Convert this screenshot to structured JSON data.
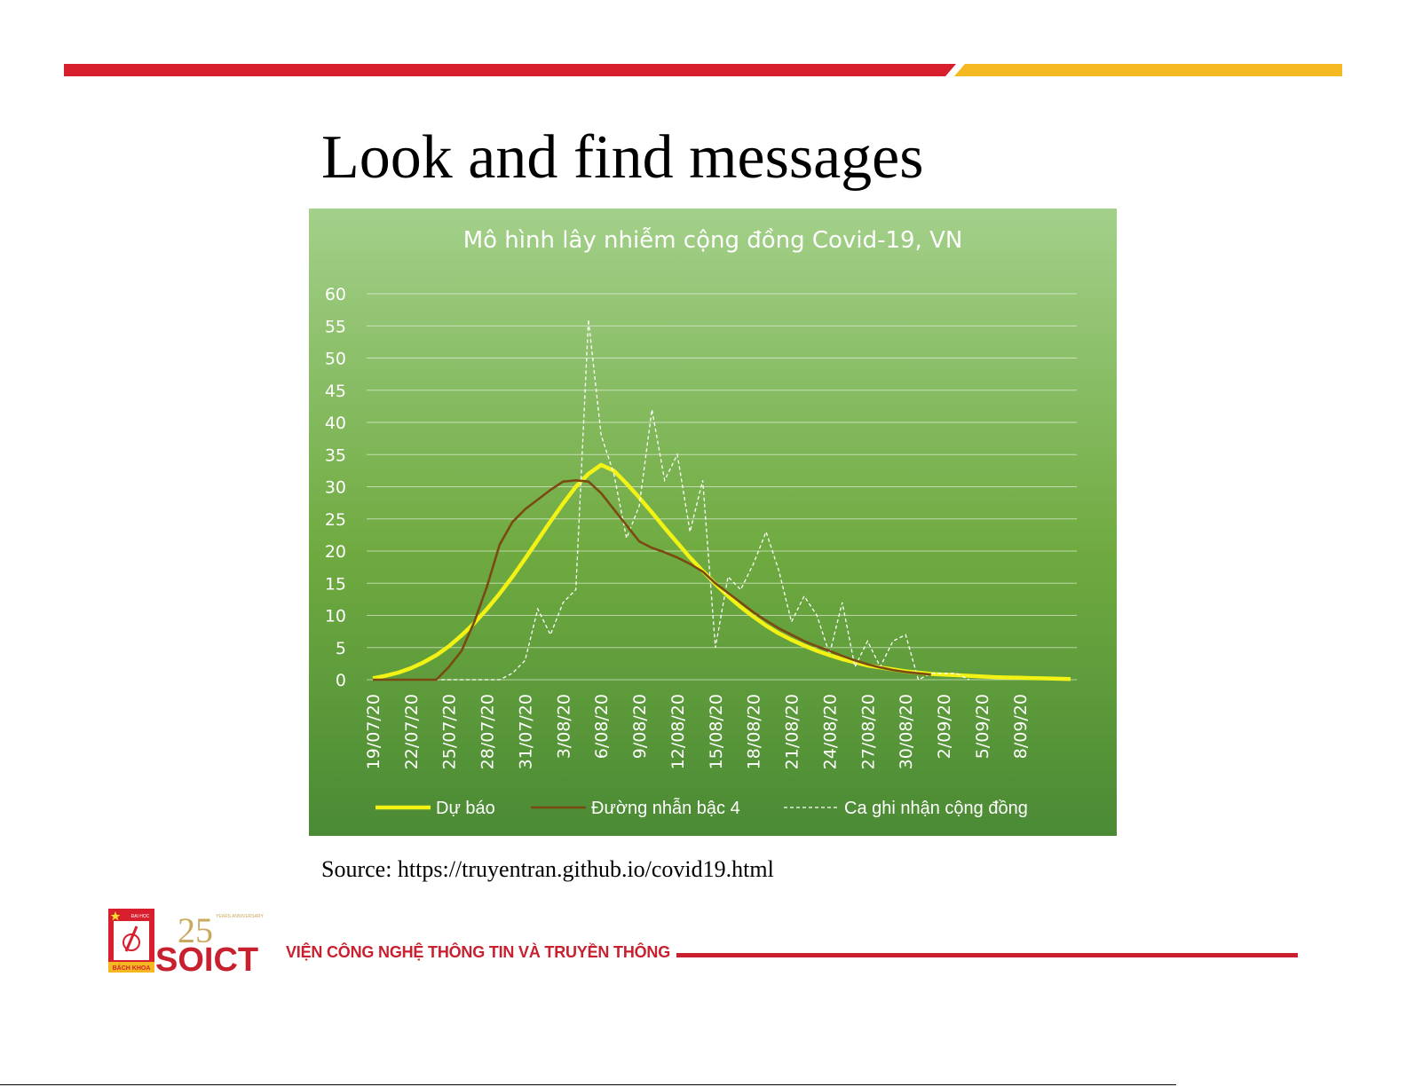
{
  "slide": {
    "title": "Look and find messages",
    "source": "Source: https://truyentran.github.io/covid19.html",
    "colors": {
      "red": "#d71f2e",
      "yellow": "#f4b920"
    }
  },
  "footer": {
    "org_name": "VIỆN CÔNG NGHỆ THÔNG TIN VÀ TRUYỀN THÔNG",
    "logo_text": "SOICT",
    "anniversary": "25",
    "school_seal_top": "ĐẠI HỌC",
    "school_seal_bottom": "BÁCH KHOA",
    "anniversary_ring": "YEARS ANNIVERSARY"
  },
  "chart_data": {
    "type": "line",
    "title": "Mô hình lây nhiễm cộng đồng Covid-19, VN",
    "xlabel": "",
    "ylabel": "",
    "ylim": [
      0,
      60
    ],
    "yticks": [
      0,
      5,
      10,
      15,
      20,
      25,
      30,
      35,
      40,
      45,
      50,
      55,
      60
    ],
    "x_tick_labels": [
      "19/07/20",
      "22/07/20",
      "25/07/20",
      "28/07/20",
      "31/07/20",
      "3/08/20",
      "6/08/20",
      "9/08/20",
      "12/08/20",
      "15/08/20",
      "18/08/20",
      "21/08/20",
      "24/08/20",
      "27/08/20",
      "30/08/20",
      "2/09/20",
      "5/09/20",
      "8/09/20"
    ],
    "x_start": "19/07/20",
    "n_days": 56,
    "grid": true,
    "legend_position": "bottom",
    "background": {
      "top": "#a3d08a",
      "middle": "#6faa40",
      "bottom": "#4b8a35"
    },
    "series": [
      {
        "name": "Dự báo",
        "style": "solid-thick",
        "color": "#f2f215",
        "values": [
          0.2,
          0.6,
          1.1,
          1.8,
          2.7,
          3.8,
          5.2,
          6.9,
          8.8,
          11.0,
          13.4,
          16.0,
          18.8,
          21.7,
          24.6,
          27.4,
          30.0,
          32.0,
          33.4,
          32.5,
          30.5,
          28.3,
          26.0,
          23.6,
          21.3,
          19.0,
          16.9,
          14.9,
          13.0,
          11.3,
          9.8,
          8.4,
          7.2,
          6.2,
          5.3,
          4.5,
          3.8,
          3.2,
          2.7,
          2.2,
          1.9,
          1.6,
          1.3,
          1.1,
          0.9,
          0.8,
          0.7,
          0.6,
          0.5,
          0.4,
          0.35,
          0.3,
          0.25,
          0.2,
          0.15,
          0.1
        ]
      },
      {
        "name": "Đường nhẫn bậc 4",
        "style": "solid",
        "color": "#7b4a12",
        "values": [
          0,
          0,
          0,
          0,
          0,
          0,
          2.0,
          4.5,
          9.0,
          14.5,
          21.0,
          24.5,
          26.5,
          28.0,
          29.5,
          30.8,
          31.0,
          30.8,
          29.0,
          26.5,
          24.0,
          21.5,
          20.5,
          19.8,
          19.0,
          18.0,
          16.8,
          15.0,
          13.5,
          12.0,
          10.5,
          9.2,
          8.0,
          7.0,
          6.0,
          5.2,
          4.5,
          3.7,
          3.0,
          2.4,
          1.9,
          1.5,
          1.2,
          1.0,
          0.8
        ]
      },
      {
        "name": "Ca ghi nhận cộng đồng",
        "style": "dashed-thin",
        "color": "#ffffff",
        "values": [
          0,
          0,
          0,
          0,
          0,
          0,
          0,
          0,
          0,
          0,
          0,
          1,
          3,
          11,
          7,
          12,
          14,
          56,
          38,
          32,
          22,
          27,
          42,
          31,
          35,
          23,
          31,
          5,
          16,
          14,
          18,
          23,
          17,
          9,
          13,
          10,
          4,
          12,
          2,
          6,
          2,
          6,
          7,
          0,
          1,
          1,
          1,
          0
        ]
      }
    ]
  }
}
